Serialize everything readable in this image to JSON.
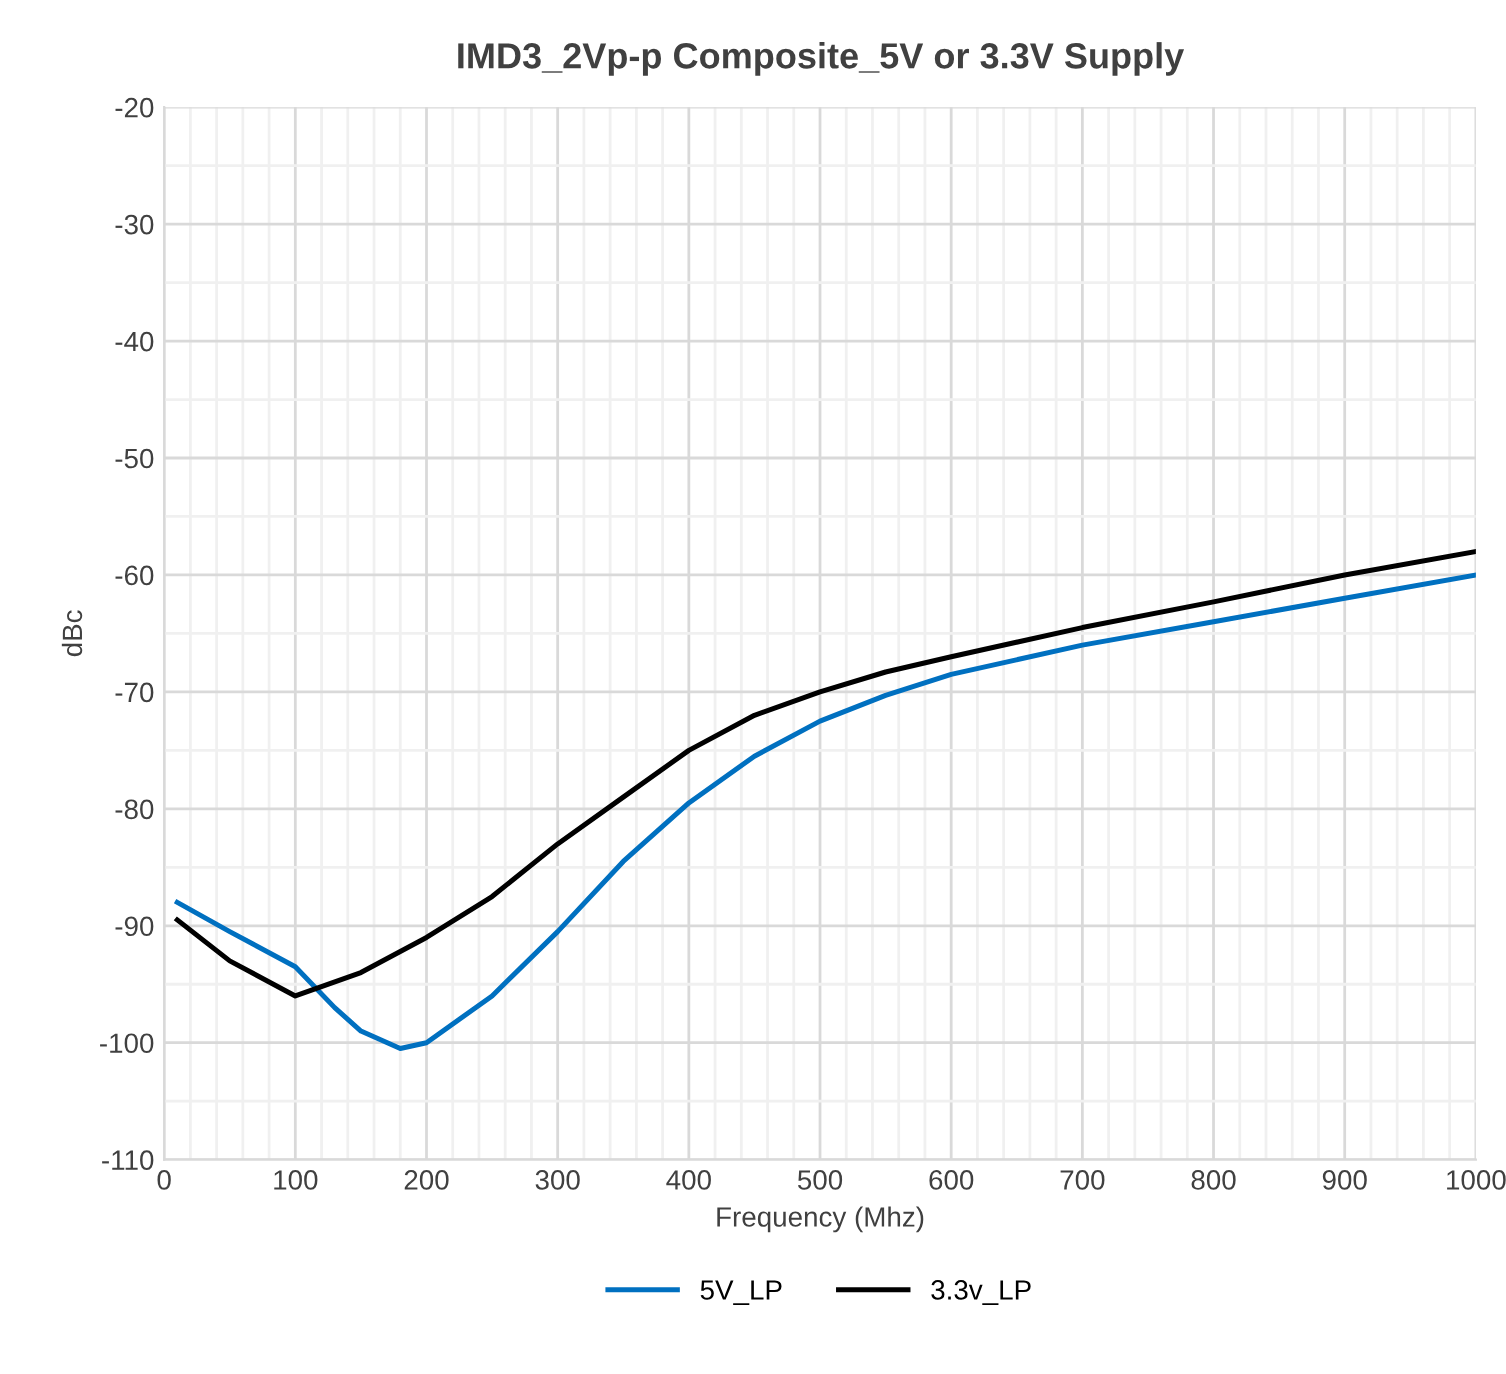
{
  "chart_data": {
    "type": "line",
    "title": "IMD3_2Vp-p Composite_5V or 3.3V Supply",
    "xlabel": "Frequency (Mhz)",
    "ylabel": "dBc",
    "xlim": [
      0,
      1000
    ],
    "xticks": [
      0,
      100,
      200,
      300,
      400,
      500,
      600,
      700,
      800,
      900,
      1000
    ],
    "ylim": [
      -110,
      -20
    ],
    "yticks": [
      -110,
      -100,
      -90,
      -80,
      -70,
      -60,
      -50,
      -40,
      -30,
      -20
    ],
    "grid": true,
    "legend": "bottom",
    "line_style": "solid",
    "marker": "none",
    "series": [
      {
        "name": "5V_LP",
        "color": "#0070c0",
        "x": [
          10,
          50,
          100,
          130,
          150,
          180,
          200,
          250,
          300,
          350,
          400,
          450,
          500,
          550,
          600,
          700,
          800,
          900,
          1000
        ],
        "values": [
          -88,
          -90.5,
          -93.5,
          -97,
          -99,
          -100.5,
          -100,
          -96,
          -90.5,
          -84.5,
          -79.5,
          -75.5,
          -72.5,
          -70.3,
          -68.5,
          -66,
          -64,
          -62,
          -60
        ]
      },
      {
        "name": "3.3v_LP",
        "color": "#000000",
        "x": [
          10,
          50,
          100,
          150,
          200,
          250,
          300,
          350,
          400,
          450,
          500,
          550,
          600,
          700,
          800,
          900,
          1000
        ],
        "values": [
          -89.5,
          -93,
          -96,
          -94,
          -91,
          -87.5,
          -83,
          -79,
          -75,
          -72,
          -70,
          -68.3,
          -67,
          -64.5,
          -62.3,
          -60,
          -58
        ]
      }
    ]
  }
}
